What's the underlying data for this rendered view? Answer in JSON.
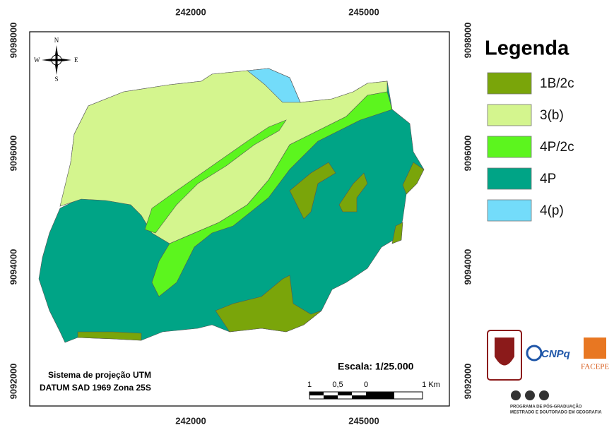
{
  "map": {
    "grid_labels_x": [
      242000,
      245000
    ],
    "grid_labels_y": [
      9098000,
      9096000,
      9094000,
      9092000
    ]
  },
  "compass": {
    "n": "N",
    "s": "S",
    "e": "E",
    "w": "W"
  },
  "legend": {
    "title": "Legenda",
    "items": [
      {
        "label": "1B/2c",
        "color": "#7aa50a"
      },
      {
        "label": "3(b)",
        "color": "#d4f58e"
      },
      {
        "label": "4P/2c",
        "color": "#5cf51e"
      },
      {
        "label": "4P",
        "color": "#00a486"
      },
      {
        "label": "4(p)",
        "color": "#73dcfa"
      }
    ]
  },
  "scale": {
    "title": "Escala: 1/25.000",
    "bar_labels": [
      "1",
      "0,5",
      "0",
      "1 Km"
    ]
  },
  "projection": [
    "Sistema de projeção UTM",
    "DATUM SAD 1969 Zona 25S"
  ],
  "logos": {
    "cnpq": "CNPq",
    "facepe": "FACEPE",
    "program": [
      "PROGRAMA DE PÓS-GRADUAÇÃO",
      "MESTRADO E DOUTORADO EM GEOGRAFIA"
    ]
  }
}
